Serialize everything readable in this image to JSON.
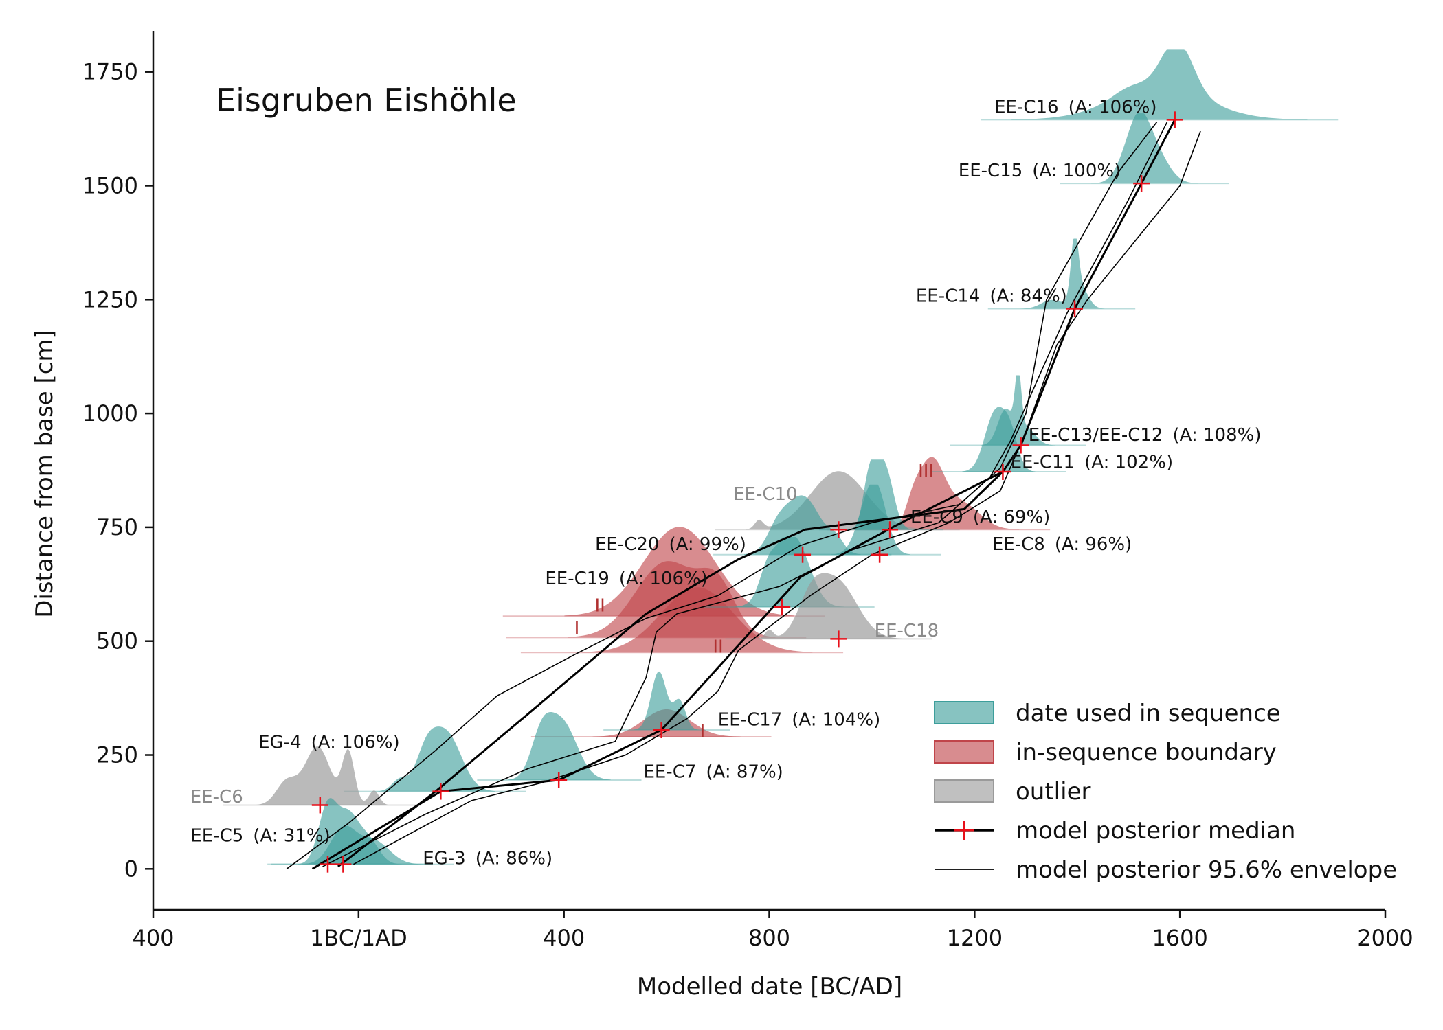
{
  "chart_data": {
    "type": "density-ridge-scatter",
    "title": "Eisgruben Eishöhle",
    "xlabel": "Modelled date [BC/AD]",
    "ylabel": "Distance from base [cm]",
    "xlim": [
      -400,
      2000
    ],
    "ylim": [
      -90,
      1840
    ],
    "x_ticks": [
      {
        "value": -400,
        "label": "400"
      },
      {
        "value": 0,
        "label": "1BC/1AD"
      },
      {
        "value": 400,
        "label": "400"
      },
      {
        "value": 800,
        "label": "800"
      },
      {
        "value": 1200,
        "label": "1200"
      },
      {
        "value": 1600,
        "label": "1600"
      },
      {
        "value": 2000,
        "label": "2000"
      }
    ],
    "y_ticks": [
      0,
      250,
      500,
      750,
      1000,
      1250,
      1500,
      1750
    ],
    "grid": false,
    "legend_position": "bottom-right",
    "colors": {
      "sequence": "#3d9e9b",
      "boundary": "#c0454a",
      "outlier": "#9a9a9a",
      "median_marker": "#e8101a",
      "curve": "#000000"
    },
    "legend": [
      {
        "key": "sequence",
        "label": "date used in sequence",
        "kind": "patch"
      },
      {
        "key": "boundary",
        "label": "in-sequence boundary",
        "kind": "patch"
      },
      {
        "key": "outlier",
        "label": "outlier",
        "kind": "patch"
      },
      {
        "key": "median",
        "label": "model posterior median",
        "kind": "line-plus"
      },
      {
        "key": "envelope",
        "label": "model posterior 95.6% envelope",
        "kind": "thin-line"
      }
    ],
    "dates": [
      {
        "name": "EE-C16",
        "agreement": "(A: 106%)",
        "category": "sequence",
        "depth": 1645,
        "median": 1590,
        "peaks": [
          [
            1560,
            90,
            0.55
          ],
          [
            1595,
            30,
            0.85
          ],
          [
            1500,
            30,
            0.12
          ]
        ],
        "label_x": 1555,
        "label_y": 1660,
        "label_anchor": "end"
      },
      {
        "name": "EE-C15",
        "agreement": "(A: 100%)",
        "category": "sequence",
        "depth": 1505,
        "median": 1525,
        "peaks": [
          [
            1520,
            22,
            1.0
          ],
          [
            1555,
            25,
            0.45
          ],
          [
            1490,
            20,
            0.2
          ]
        ],
        "label_x": 1485,
        "label_y": 1520,
        "label_anchor": "end"
      },
      {
        "name": "EE-C14",
        "agreement": "(A: 84%)",
        "category": "sequence",
        "depth": 1230,
        "median": 1395,
        "peaks": [
          [
            1395,
            7,
            1.0
          ],
          [
            1405,
            15,
            0.4
          ],
          [
            1350,
            20,
            0.15
          ]
        ],
        "label_x": 1380,
        "label_y": 1245,
        "label_anchor": "end"
      },
      {
        "name": "EE-C13/EE-C12",
        "agreement": "(A: 108%)",
        "category": "sequence",
        "depth": 930,
        "median": 1290,
        "peaks": [
          [
            1285,
            6,
            1.0
          ],
          [
            1260,
            15,
            0.6
          ],
          [
            1300,
            18,
            0.3
          ]
        ],
        "label_x": 1305,
        "label_y": 940,
        "label_anchor": "start"
      },
      {
        "name": "EE-C11",
        "agreement": "(A: 102%)",
        "category": "sequence",
        "depth": 872,
        "median": 1255,
        "peaks": [
          [
            1240,
            20,
            1.0
          ],
          [
            1270,
            15,
            0.55
          ]
        ],
        "label_x": 1270,
        "label_y": 880,
        "label_anchor": "start"
      },
      {
        "name": "EE-C10",
        "agreement": "",
        "category": "outlier",
        "depth": 745,
        "median": 935,
        "peaks": [
          [
            935,
            55,
            1.0
          ],
          [
            780,
            8,
            0.15
          ]
        ],
        "label_x": 855,
        "label_y": 810,
        "label_anchor": "end"
      },
      {
        "name": "EE-C9",
        "agreement": "(A: 69%)",
        "category": "sequence",
        "depth": 745,
        "median": 1035,
        "peaks": [
          [
            1005,
            15,
            1.0
          ],
          [
            1030,
            15,
            0.8
          ],
          [
            990,
            10,
            0.3
          ]
        ],
        "label_x": 1075,
        "label_y": 760,
        "label_anchor": "start"
      },
      {
        "name": "EE-C20",
        "agreement": "(A: 99%)",
        "category": "sequence",
        "depth": 690,
        "median": 865,
        "peaks": [
          [
            865,
            35,
            1.0
          ],
          [
            815,
            20,
            0.3
          ],
          [
            930,
            15,
            0.2
          ]
        ],
        "label_x": 755,
        "label_y": 700,
        "label_anchor": "end"
      },
      {
        "name": "EE-C8",
        "agreement": "(A: 96%)",
        "category": "sequence",
        "depth": 690,
        "median": 1015,
        "peaks": [
          [
            1010,
            20,
            1.0
          ],
          [
            985,
            20,
            0.5
          ]
        ],
        "label_x": 1000,
        "label_y": 700,
        "label_anchor": "start",
        "label_dx": 175
      },
      {
        "name": "EE-C19",
        "agreement": "(A: 106%)",
        "category": "sequence",
        "depth": 575,
        "median": 825,
        "peaks": [
          [
            830,
            30,
            1.0
          ],
          [
            865,
            25,
            0.5
          ],
          [
            795,
            15,
            0.3
          ]
        ],
        "label_x": 680,
        "label_y": 625,
        "label_anchor": "end"
      },
      {
        "name": "EE-C18",
        "agreement": "",
        "category": "outlier",
        "depth": 505,
        "median": 935,
        "peaks": [
          [
            930,
            40,
            1.0
          ],
          [
            880,
            25,
            0.5
          ],
          [
            800,
            8,
            0.15
          ]
        ],
        "label_x": 1005,
        "label_y": 510,
        "label_anchor": "start"
      },
      {
        "name": "EE-C17",
        "agreement": "(A: 104%)",
        "category": "sequence",
        "depth": 305,
        "median": 590,
        "peaks": [
          [
            585,
            15,
            1.0
          ],
          [
            625,
            12,
            0.5
          ]
        ],
        "label_x": 700,
        "label_y": 315,
        "label_anchor": "start"
      },
      {
        "name": "EG-4",
        "agreement": "(A: 106%)",
        "category": "sequence",
        "depth": 170,
        "median": 160,
        "peaks": [
          [
            170,
            30,
            1.0
          ],
          [
            130,
            20,
            0.5
          ],
          [
            80,
            15,
            0.2
          ]
        ],
        "label_x": 80,
        "label_y": 265,
        "label_anchor": "end"
      },
      {
        "name": "EE-C7",
        "agreement": "(A: 87%)",
        "category": "sequence",
        "depth": 195,
        "median": 390,
        "peaks": [
          [
            395,
            30,
            1.0
          ],
          [
            355,
            20,
            0.6
          ]
        ],
        "label_x": 555,
        "label_y": 200,
        "label_anchor": "start"
      },
      {
        "name": "EE-C6",
        "agreement": "",
        "category": "outlier",
        "depth": 140,
        "median": -75,
        "peaks": [
          [
            -80,
            25,
            1.0
          ],
          [
            -20,
            12,
            0.9
          ],
          [
            -140,
            20,
            0.4
          ],
          [
            30,
            10,
            0.25
          ]
        ],
        "label_x": -225,
        "label_y": 145,
        "label_anchor": "end"
      },
      {
        "name": "EE-C5",
        "agreement": "(A: 31%)",
        "category": "sequence",
        "depth": 10,
        "median": -60,
        "peaks": [
          [
            -60,
            18,
            1.0
          ],
          [
            -20,
            20,
            0.8
          ],
          [
            20,
            20,
            0.4
          ]
        ],
        "label_x": -55,
        "label_y": 60,
        "label_anchor": "end"
      },
      {
        "name": "EG-3",
        "agreement": "(A: 86%)",
        "category": "sequence",
        "depth": 10,
        "median": -30,
        "peaks": [
          [
            -30,
            25,
            0.6
          ],
          [
            30,
            30,
            0.4
          ]
        ],
        "label_x": 125,
        "label_y": 10,
        "label_anchor": "start"
      }
    ],
    "boundaries": [
      {
        "name": "III",
        "depth": 745,
        "median": 1120,
        "peaks": [
          [
            1115,
            25,
            1.0
          ],
          [
            1175,
            35,
            0.4
          ],
          [
            1080,
            15,
            0.3
          ]
        ],
        "height_scale": 95,
        "label_x": 1090,
        "label_y": 860
      },
      {
        "name": "II",
        "depth": 555,
        "median": 625,
        "peaks": [
          [
            625,
            70,
            1.0
          ]
        ],
        "height_scale": 130,
        "label_x": 460,
        "label_y": 565
      },
      {
        "name": "I",
        "depth": 508,
        "median": 620,
        "peaks": [
          [
            600,
            60,
            1.0
          ],
          [
            700,
            35,
            0.6
          ]
        ],
        "height_scale": 110,
        "label_x": 420,
        "label_y": 515
      },
      {
        "name": "II",
        "depth": 475,
        "median": 640,
        "peaks": [
          [
            660,
            70,
            1.0
          ]
        ],
        "height_scale": 95,
        "label_x": 690,
        "label_y": 475
      },
      {
        "name": "I",
        "depth": 290,
        "median": 585,
        "peaks": [
          [
            600,
            45,
            1.0
          ]
        ],
        "height_scale": 40,
        "label_x": 665,
        "label_y": 290
      }
    ],
    "median_curve": [
      [
        -90,
        0
      ],
      [
        160,
        170
      ],
      [
        390,
        195
      ],
      [
        590,
        305
      ],
      [
        860,
        640
      ],
      [
        1040,
        750
      ],
      [
        1255,
        872
      ],
      [
        1290,
        930
      ],
      [
        1395,
        1230
      ],
      [
        1525,
        1505
      ],
      [
        1590,
        1645
      ]
    ],
    "median_curve_2": [
      [
        -40,
        5
      ],
      [
        150,
        170
      ],
      [
        330,
        340
      ],
      [
        560,
        560
      ],
      [
        740,
        680
      ],
      [
        870,
        745
      ],
      [
        1180,
        790
      ],
      [
        1255,
        872
      ]
    ],
    "envelope_curves": [
      [
        [
          -140,
          0
        ],
        [
          -20,
          100
        ],
        [
          150,
          260
        ],
        [
          270,
          380
        ],
        [
          420,
          470
        ],
        [
          560,
          550
        ],
        [
          700,
          600
        ],
        [
          860,
          710
        ],
        [
          1000,
          760
        ],
        [
          1170,
          800
        ],
        [
          1250,
          880
        ],
        [
          1300,
          1000
        ],
        [
          1340,
          1250
        ],
        [
          1480,
          1530
        ],
        [
          1555,
          1640
        ]
      ],
      [
        [
          -10,
          10
        ],
        [
          220,
          150
        ],
        [
          360,
          190
        ],
        [
          520,
          250
        ],
        [
          640,
          330
        ],
        [
          700,
          390
        ],
        [
          740,
          480
        ],
        [
          880,
          600
        ],
        [
          1000,
          690
        ],
        [
          1150,
          760
        ],
        [
          1250,
          830
        ],
        [
          1300,
          960
        ],
        [
          1360,
          1150
        ],
        [
          1420,
          1250
        ],
        [
          1600,
          1500
        ],
        [
          1640,
          1620
        ]
      ],
      [
        [
          -70,
          5
        ],
        [
          130,
          120
        ],
        [
          330,
          220
        ],
        [
          500,
          280
        ],
        [
          560,
          420
        ],
        [
          580,
          520
        ],
        [
          620,
          560
        ],
        [
          820,
          620
        ],
        [
          960,
          700
        ],
        [
          1130,
          760
        ],
        [
          1230,
          860
        ],
        [
          1270,
          940
        ],
        [
          1380,
          1220
        ],
        [
          1500,
          1470
        ],
        [
          1575,
          1640
        ]
      ]
    ]
  }
}
